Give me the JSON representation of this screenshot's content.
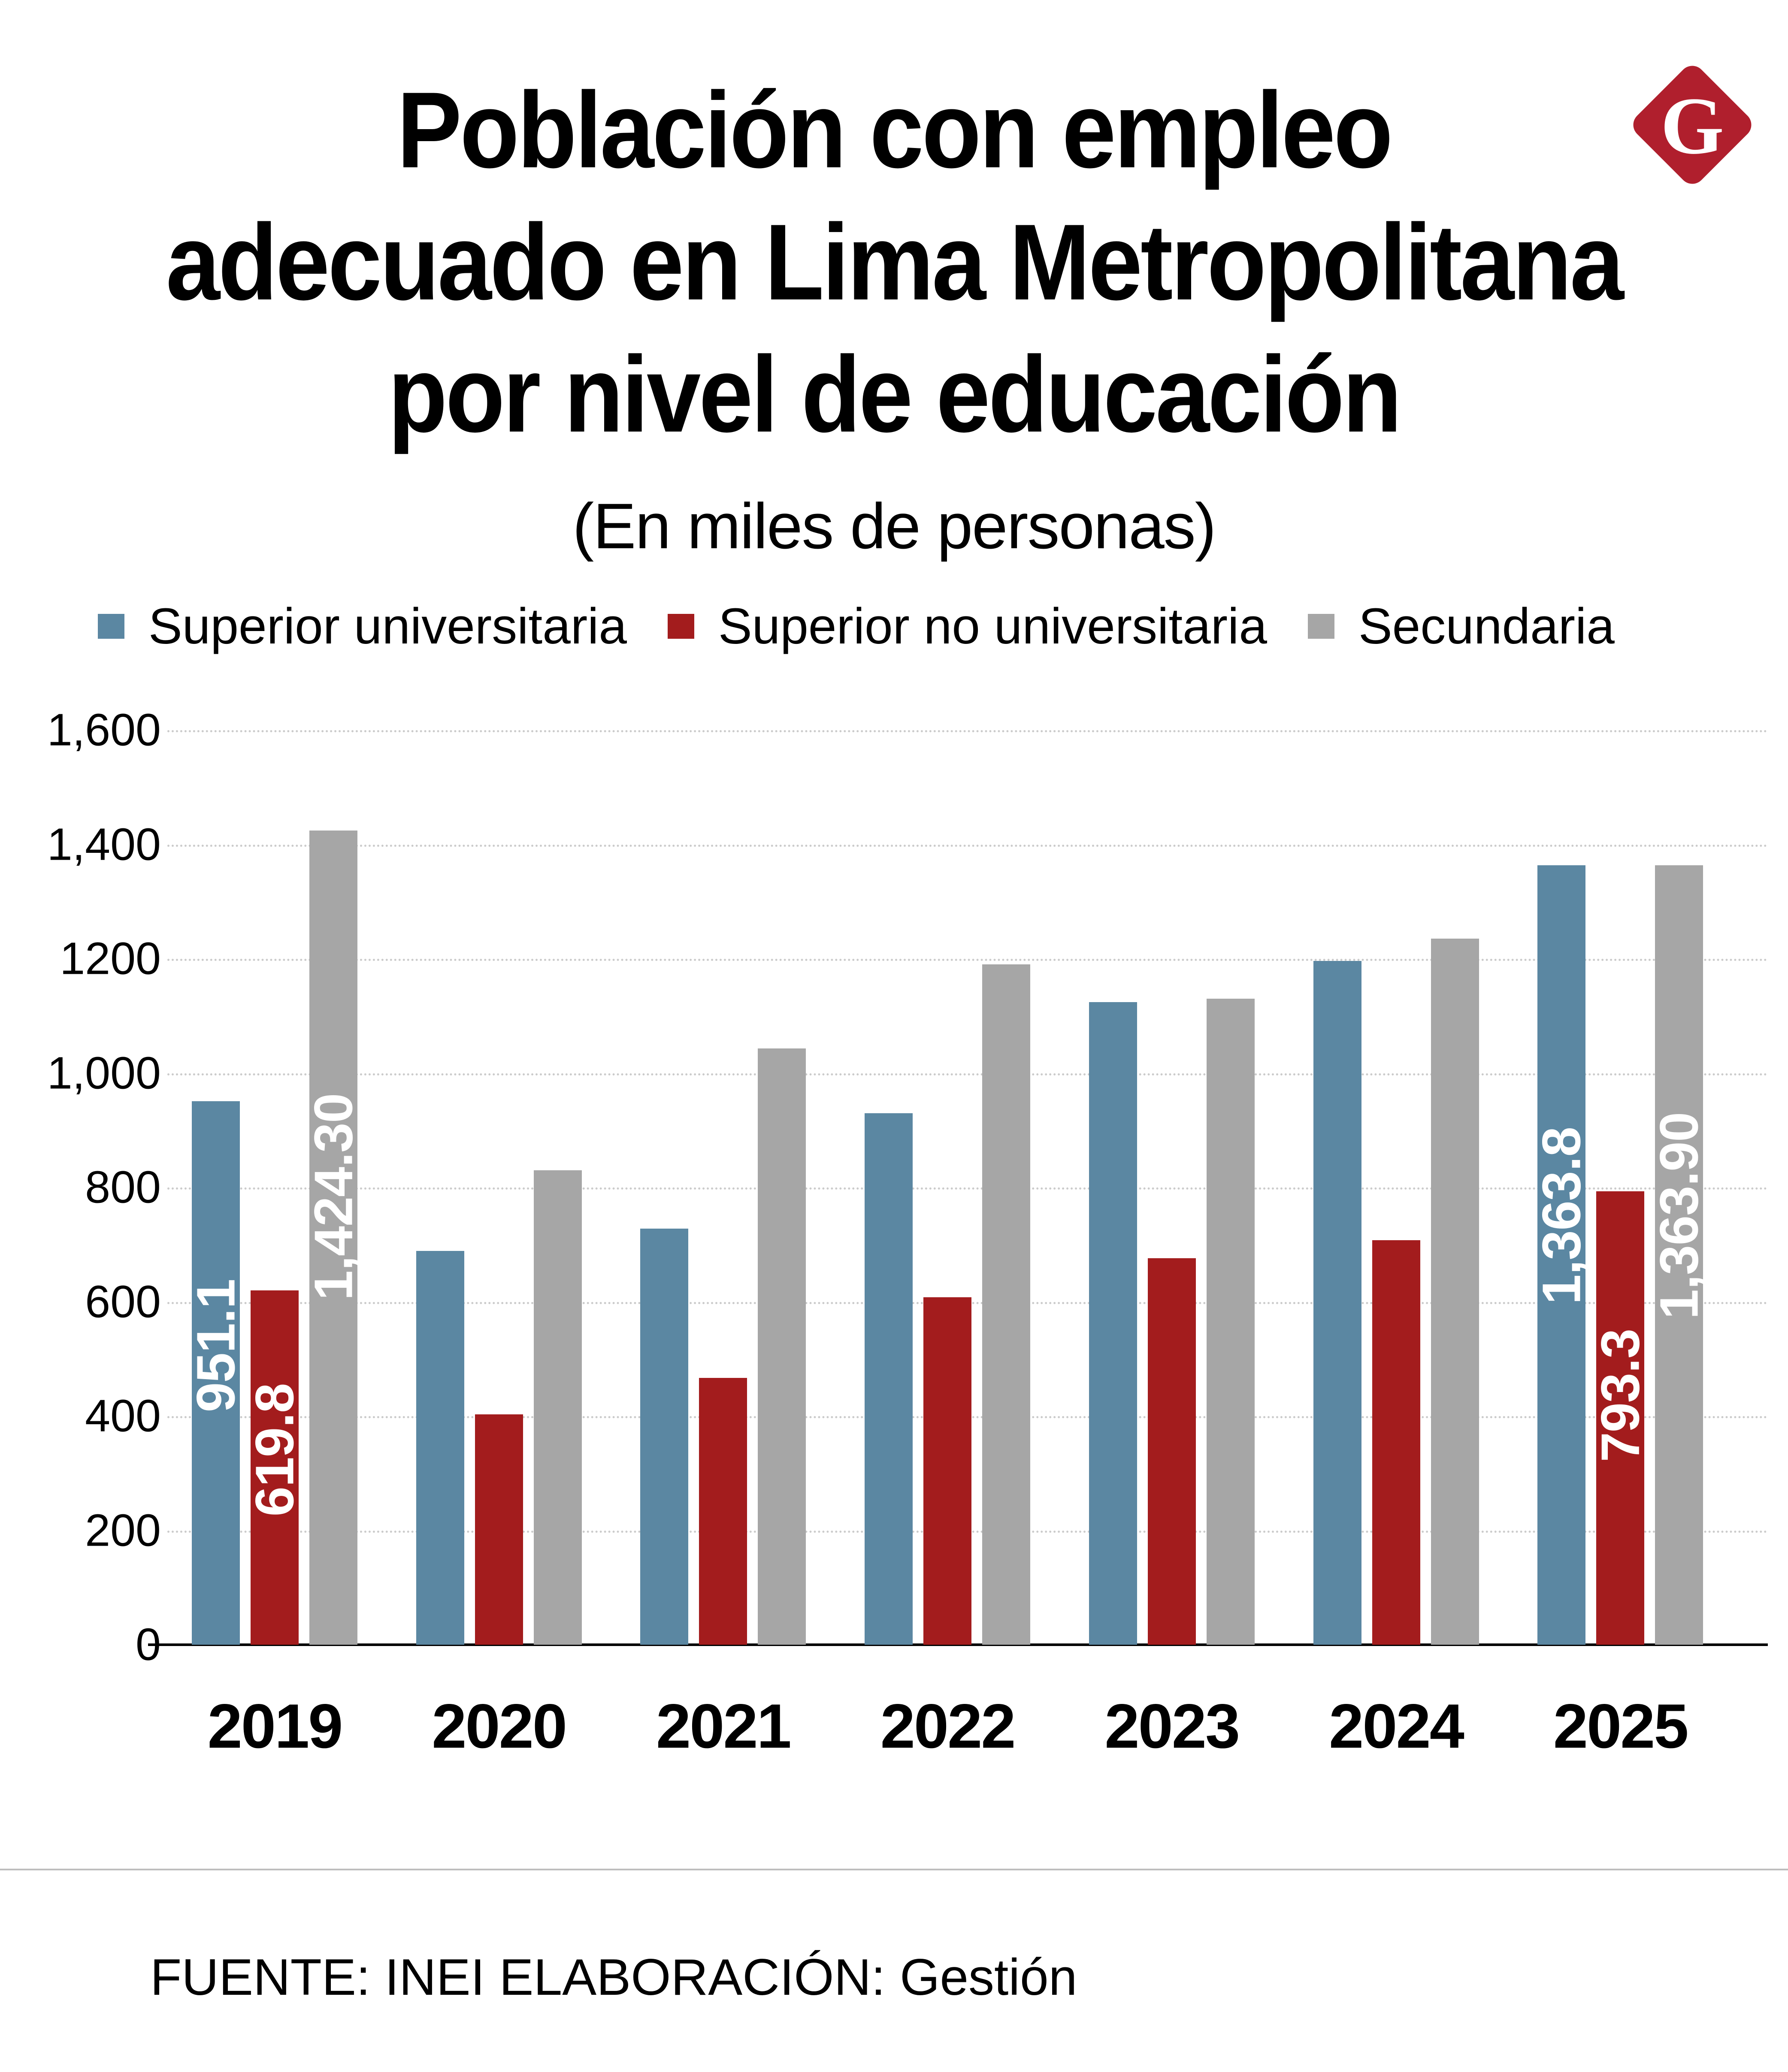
{
  "header": {
    "title_lines": [
      "Población con empleo",
      "adecuado en Lima Metropolitana",
      "por nivel de educación"
    ],
    "subtitle": "(En miles de personas)",
    "logo_letter": "G",
    "logo_color": "#b01f2d"
  },
  "legend": {
    "items": [
      {
        "label": "Superior universitaria"
      },
      {
        "label": "Superior no universitaria"
      },
      {
        "label": "Secundaria"
      }
    ]
  },
  "footer": {
    "source": "FUENTE: INEI   ELABORACIÓN: Gestión"
  },
  "chart_data": {
    "type": "bar",
    "title": "Población con empleo adecuado en Lima Metropolitana por nivel de educación",
    "subtitle": "(En miles de personas)",
    "unit": "miles de personas",
    "categories": [
      "2019",
      "2020",
      "2021",
      "2022",
      "2023",
      "2024",
      "2025"
    ],
    "series": [
      {
        "name": "Superior universitaria",
        "color": "#5b87a2",
        "values": [
          951.1,
          689,
          728,
          930,
          1124,
          1196,
          1363.8
        ],
        "labels": [
          "951.1",
          null,
          null,
          null,
          null,
          null,
          "1,363.8"
        ]
      },
      {
        "name": "Superior no universitaria",
        "color": "#a31c1d",
        "values": [
          619.8,
          403,
          467,
          608,
          676,
          708,
          793.3
        ],
        "labels": [
          "619.8",
          null,
          null,
          null,
          null,
          null,
          "793.3"
        ]
      },
      {
        "name": "Secundaria",
        "color": "#a6a6a6",
        "values": [
          1424.3,
          830,
          1043,
          1190,
          1130,
          1235,
          1363.9
        ],
        "labels": [
          "1,424.30",
          null,
          null,
          null,
          null,
          null,
          "1,363.90"
        ]
      }
    ],
    "ylim": [
      0,
      1600
    ],
    "yticks": [
      {
        "value": 1600,
        "label": "1,600"
      },
      {
        "value": 1400,
        "label": "1,400"
      },
      {
        "value": 1200,
        "label": "1200"
      },
      {
        "value": 1000,
        "label": "1,000"
      },
      {
        "value": 800,
        "label": "800"
      },
      {
        "value": 600,
        "label": "600"
      },
      {
        "value": 400,
        "label": "400"
      },
      {
        "value": 200,
        "label": "200"
      },
      {
        "value": 0,
        "label": "0"
      }
    ],
    "grid": "dotted-horizontal",
    "legend_position": "top",
    "gridline_color": "#cbcbcb",
    "axis_color": "#000000",
    "bar_label_color": "#ffffff"
  }
}
